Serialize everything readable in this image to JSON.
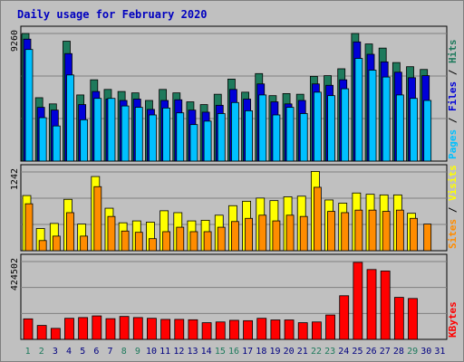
{
  "title": "Daily usage for February 2020",
  "colors": {
    "hits": "#1e7a5c",
    "files": "#0000d8",
    "pages": "#00c0ff",
    "visits": "#ffff00",
    "sites": "#ff8c00",
    "kbytes": "#ff0000",
    "title": "#0000c0",
    "day_highlight": "#1e7a5c",
    "day_normal": "#000080"
  },
  "chart_data": [
    {
      "type": "bar",
      "panel": "hits-files-pages",
      "ymax_label": "9260",
      "ylim": [
        0,
        9260
      ],
      "ylabel_parts": [
        "Pages",
        "Files",
        "Hits"
      ],
      "categories": [
        "1",
        "2",
        "3",
        "4",
        "5",
        "6",
        "7",
        "8",
        "9",
        "10",
        "11",
        "12",
        "13",
        "14",
        "15",
        "16",
        "17",
        "18",
        "19",
        "20",
        "21",
        "22",
        "23",
        "24",
        "25",
        "26",
        "27",
        "28",
        "29",
        "30",
        "31"
      ],
      "series": [
        {
          "name": "Hits",
          "values": [
            9260,
            4600,
            4150,
            8700,
            4800,
            5900,
            5200,
            5050,
            4950,
            4400,
            5200,
            4950,
            4300,
            4100,
            4850,
            5950,
            5000,
            6350,
            4750,
            4900,
            4850,
            6150,
            6200,
            6700,
            9260,
            8500,
            8200,
            7150,
            6850,
            6650,
            0
          ]
        },
        {
          "name": "Files",
          "values": [
            8850,
            3900,
            3700,
            7800,
            4100,
            5050,
            4500,
            4400,
            4500,
            3750,
            4400,
            4450,
            3700,
            3550,
            4050,
            5200,
            4500,
            5600,
            4300,
            4150,
            4400,
            5600,
            5500,
            5900,
            8650,
            7750,
            7200,
            6450,
            6050,
            6200,
            0
          ]
        },
        {
          "name": "Pages",
          "values": [
            8100,
            3150,
            2550,
            6250,
            3000,
            4550,
            4550,
            4000,
            3900,
            3350,
            3850,
            3500,
            2650,
            2900,
            3450,
            4250,
            3650,
            4800,
            3350,
            3900,
            3450,
            5000,
            4750,
            5250,
            7450,
            6600,
            6100,
            4800,
            4550,
            4400,
            0
          ]
        }
      ]
    },
    {
      "type": "bar",
      "panel": "visits-sites",
      "ymax_label": "1242",
      "ylim": [
        0,
        1242
      ],
      "ylabel_parts": [
        "Sites",
        "Visits"
      ],
      "categories": [
        "1",
        "2",
        "3",
        "4",
        "5",
        "6",
        "7",
        "8",
        "9",
        "10",
        "11",
        "12",
        "13",
        "14",
        "15",
        "16",
        "17",
        "18",
        "19",
        "20",
        "21",
        "22",
        "23",
        "24",
        "25",
        "26",
        "27",
        "28",
        "29",
        "30",
        "31"
      ],
      "series": [
        {
          "name": "Visits",
          "values": [
            870,
            350,
            430,
            810,
            420,
            1170,
            670,
            440,
            470,
            450,
            630,
            600,
            470,
            480,
            560,
            710,
            780,
            830,
            790,
            850,
            860,
            1250,
            800,
            750,
            910,
            890,
            880,
            880,
            590,
            0,
            0
          ]
        },
        {
          "name": "Sites",
          "values": [
            740,
            160,
            230,
            600,
            230,
            1010,
            540,
            310,
            290,
            190,
            300,
            370,
            300,
            300,
            370,
            460,
            510,
            560,
            470,
            560,
            540,
            1000,
            620,
            600,
            640,
            640,
            620,
            640,
            510,
            420,
            0
          ]
        }
      ]
    },
    {
      "type": "bar",
      "panel": "kbytes",
      "ymax_label": "424502",
      "ylim": [
        0,
        424502
      ],
      "ylabel_parts": [
        "KBytes"
      ],
      "categories": [
        "1",
        "2",
        "3",
        "4",
        "5",
        "6",
        "7",
        "8",
        "9",
        "10",
        "11",
        "12",
        "13",
        "14",
        "15",
        "16",
        "17",
        "18",
        "19",
        "20",
        "21",
        "22",
        "23",
        "24",
        "25",
        "26",
        "27",
        "28",
        "29",
        "30",
        "31"
      ],
      "series": [
        {
          "name": "KBytes",
          "values": [
            112000,
            76000,
            60000,
            115000,
            119000,
            128000,
            113000,
            125000,
            119000,
            115000,
            109000,
            109000,
            107000,
            91000,
            95000,
            104000,
            102000,
            115000,
            106000,
            106000,
            91000,
            95000,
            133000,
            238000,
            420000,
            381000,
            373000,
            229000,
            223000,
            0,
            0
          ]
        }
      ]
    }
  ],
  "day_labels": [
    {
      "label": "1",
      "highlight": true
    },
    {
      "label": "2",
      "highlight": true
    },
    {
      "label": "3",
      "highlight": false
    },
    {
      "label": "4",
      "highlight": false
    },
    {
      "label": "5",
      "highlight": false
    },
    {
      "label": "6",
      "highlight": false
    },
    {
      "label": "7",
      "highlight": false
    },
    {
      "label": "8",
      "highlight": true
    },
    {
      "label": "9",
      "highlight": true
    },
    {
      "label": "10",
      "highlight": false
    },
    {
      "label": "11",
      "highlight": false
    },
    {
      "label": "12",
      "highlight": false
    },
    {
      "label": "13",
      "highlight": false
    },
    {
      "label": "14",
      "highlight": false
    },
    {
      "label": "15",
      "highlight": true
    },
    {
      "label": "16",
      "highlight": true
    },
    {
      "label": "17",
      "highlight": false
    },
    {
      "label": "18",
      "highlight": false
    },
    {
      "label": "19",
      "highlight": false
    },
    {
      "label": "20",
      "highlight": false
    },
    {
      "label": "21",
      "highlight": false
    },
    {
      "label": "22",
      "highlight": true
    },
    {
      "label": "23",
      "highlight": true
    },
    {
      "label": "24",
      "highlight": false
    },
    {
      "label": "25",
      "highlight": false
    },
    {
      "label": "26",
      "highlight": false
    },
    {
      "label": "27",
      "highlight": false
    },
    {
      "label": "28",
      "highlight": false
    },
    {
      "label": "29",
      "highlight": true
    },
    {
      "label": "30",
      "highlight": false
    },
    {
      "label": "31",
      "highlight": false
    }
  ]
}
